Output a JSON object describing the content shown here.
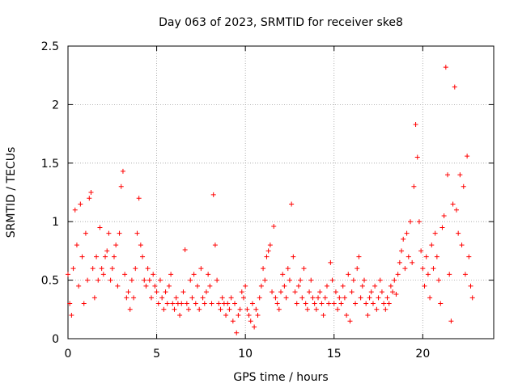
{
  "chart_data": {
    "type": "scatter",
    "title": "Day 063 of 2023, SRMTID for receiver ske8",
    "xlabel": "GPS time / hours",
    "ylabel": "SRMTID / TECUs",
    "xlim": [
      0,
      24
    ],
    "ylim": [
      0,
      2.5
    ],
    "xticks": [
      0,
      5,
      10,
      15,
      20
    ],
    "xtick_labels": [
      "0",
      "5",
      "10",
      "15",
      "20"
    ],
    "yticks": [
      0,
      0.5,
      1,
      1.5,
      2,
      2.5
    ],
    "ytick_labels": [
      "0",
      "0.5",
      "1",
      "1.5",
      "2",
      "2.5"
    ],
    "grid": true,
    "marker": "plus",
    "series": [
      {
        "name": "SRMTID",
        "color": "#ff0000",
        "x": [
          0.0,
          0.1,
          0.2,
          0.3,
          0.4,
          0.5,
          0.6,
          0.7,
          0.8,
          0.9,
          1.0,
          1.1,
          1.2,
          1.3,
          1.4,
          1.5,
          1.6,
          1.7,
          1.8,
          1.9,
          2.0,
          2.1,
          2.2,
          2.3,
          2.4,
          2.5,
          2.6,
          2.7,
          2.8,
          2.9,
          3.0,
          3.1,
          3.2,
          3.3,
          3.4,
          3.5,
          3.6,
          3.7,
          3.8,
          3.9,
          4.0,
          4.1,
          4.2,
          4.3,
          4.4,
          4.5,
          4.6,
          4.7,
          4.8,
          4.9,
          5.0,
          5.1,
          5.2,
          5.3,
          5.4,
          5.5,
          5.6,
          5.7,
          5.8,
          5.9,
          6.0,
          6.1,
          6.2,
          6.3,
          6.4,
          6.5,
          6.6,
          6.7,
          6.8,
          6.9,
          7.0,
          7.1,
          7.2,
          7.3,
          7.4,
          7.5,
          7.6,
          7.7,
          7.8,
          7.9,
          8.0,
          8.1,
          8.2,
          8.3,
          8.4,
          8.5,
          8.6,
          8.7,
          8.8,
          8.9,
          9.0,
          9.1,
          9.2,
          9.3,
          9.4,
          9.5,
          9.6,
          9.7,
          9.8,
          9.9,
          10.0,
          10.1,
          10.2,
          10.3,
          10.4,
          10.5,
          10.6,
          10.7,
          10.8,
          10.9,
          11.0,
          11.1,
          11.2,
          11.3,
          11.4,
          11.5,
          11.6,
          11.7,
          11.8,
          11.9,
          12.0,
          12.1,
          12.2,
          12.3,
          12.4,
          12.5,
          12.6,
          12.7,
          12.8,
          12.9,
          13.0,
          13.1,
          13.2,
          13.3,
          13.4,
          13.5,
          13.6,
          13.7,
          13.8,
          13.9,
          14.0,
          14.1,
          14.2,
          14.3,
          14.4,
          14.5,
          14.6,
          14.7,
          14.8,
          14.9,
          15.0,
          15.1,
          15.2,
          15.3,
          15.4,
          15.5,
          15.6,
          15.7,
          15.8,
          15.9,
          16.0,
          16.1,
          16.2,
          16.3,
          16.4,
          16.5,
          16.6,
          16.7,
          16.8,
          16.9,
          17.0,
          17.1,
          17.2,
          17.3,
          17.4,
          17.5,
          17.6,
          17.7,
          17.8,
          17.9,
          18.0,
          18.1,
          18.2,
          18.3,
          18.4,
          18.5,
          18.6,
          18.7,
          18.8,
          18.9,
          19.0,
          19.1,
          19.2,
          19.3,
          19.4,
          19.5,
          19.6,
          19.7,
          19.8,
          19.9,
          20.0,
          20.1,
          20.2,
          20.3,
          20.4,
          20.5,
          20.6,
          20.7,
          20.8,
          20.9,
          21.0,
          21.1,
          21.2,
          21.3,
          21.4,
          21.5,
          21.6,
          21.7,
          21.8,
          21.9,
          22.0,
          22.1,
          22.2,
          22.3,
          22.4,
          22.5,
          22.6,
          22.7,
          22.8
        ],
        "y": [
          0.55,
          0.3,
          0.2,
          0.6,
          1.1,
          0.8,
          0.45,
          1.15,
          0.7,
          0.3,
          0.9,
          0.5,
          1.2,
          1.25,
          0.6,
          0.35,
          0.7,
          0.5,
          0.95,
          0.6,
          0.55,
          0.7,
          0.75,
          0.9,
          0.5,
          0.6,
          0.7,
          0.8,
          0.45,
          0.9,
          1.3,
          1.43,
          0.55,
          0.35,
          0.4,
          0.25,
          0.5,
          0.35,
          0.6,
          0.9,
          1.2,
          0.8,
          0.7,
          0.5,
          0.45,
          0.6,
          0.5,
          0.35,
          0.55,
          0.45,
          0.4,
          0.3,
          0.5,
          0.35,
          0.25,
          0.4,
          0.3,
          0.45,
          0.55,
          0.3,
          0.25,
          0.35,
          0.3,
          0.2,
          0.3,
          0.4,
          0.76,
          0.3,
          0.25,
          0.5,
          0.35,
          0.55,
          0.3,
          0.45,
          0.25,
          0.6,
          0.35,
          0.3,
          0.4,
          0.55,
          0.45,
          0.3,
          1.23,
          0.8,
          0.5,
          0.3,
          0.25,
          0.35,
          0.3,
          0.2,
          0.3,
          0.25,
          0.35,
          0.15,
          0.3,
          0.05,
          0.2,
          0.25,
          0.4,
          0.35,
          0.45,
          0.25,
          0.2,
          0.15,
          0.3,
          0.1,
          0.25,
          0.2,
          0.35,
          0.45,
          0.6,
          0.5,
          0.7,
          0.75,
          0.8,
          0.4,
          0.96,
          0.35,
          0.3,
          0.25,
          0.4,
          0.55,
          0.45,
          0.35,
          0.6,
          0.5,
          1.15,
          0.7,
          0.4,
          0.3,
          0.45,
          0.5,
          0.35,
          0.6,
          0.3,
          0.25,
          0.4,
          0.5,
          0.35,
          0.3,
          0.25,
          0.35,
          0.4,
          0.3,
          0.2,
          0.35,
          0.45,
          0.3,
          0.65,
          0.5,
          0.3,
          0.4,
          0.25,
          0.35,
          0.3,
          0.45,
          0.35,
          0.2,
          0.55,
          0.15,
          0.4,
          0.5,
          0.3,
          0.6,
          0.7,
          0.35,
          0.45,
          0.5,
          0.3,
          0.2,
          0.35,
          0.4,
          0.3,
          0.45,
          0.25,
          0.35,
          0.5,
          0.4,
          0.3,
          0.25,
          0.35,
          0.3,
          0.45,
          0.4,
          0.5,
          0.38,
          0.55,
          0.65,
          0.75,
          0.85,
          0.6,
          0.9,
          0.7,
          1.0,
          0.65,
          1.3,
          1.83,
          1.55,
          1.0,
          0.75,
          0.6,
          0.45,
          0.7,
          0.55,
          0.35,
          0.8,
          0.6,
          0.9,
          0.7,
          0.5,
          0.3,
          0.95,
          1.05,
          2.32,
          1.4,
          0.55,
          0.15,
          1.15,
          2.15,
          1.1,
          0.9,
          1.4,
          0.8,
          1.3,
          0.55,
          1.56,
          0.7,
          0.45,
          0.35
        ]
      }
    ]
  }
}
